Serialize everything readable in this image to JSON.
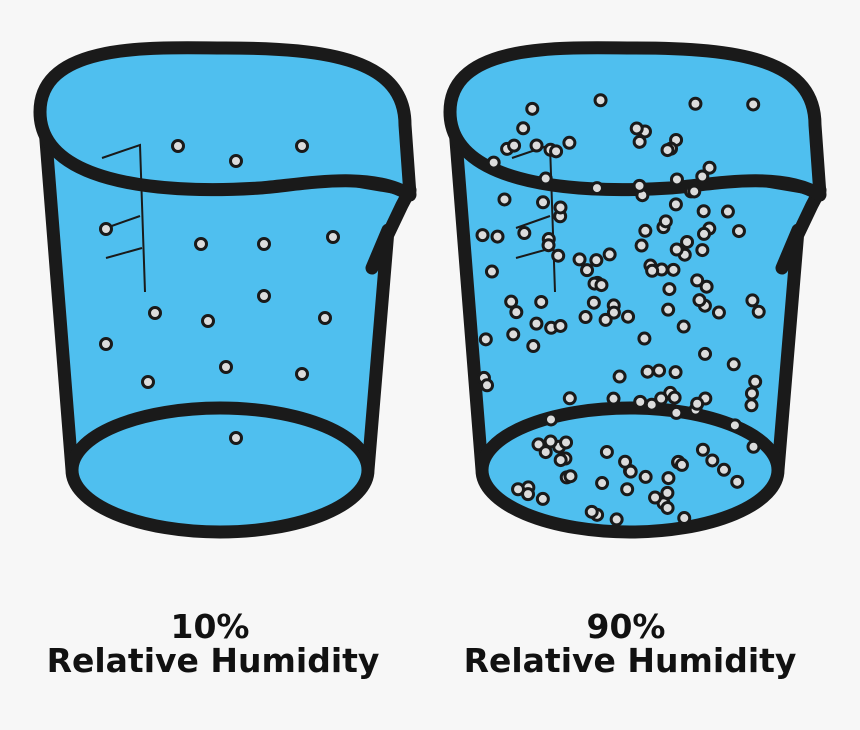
{
  "panels": [
    {
      "value": "10%",
      "label": "Relative Humidity"
    },
    {
      "value": "90%",
      "label": "Relative Humidity"
    }
  ]
}
